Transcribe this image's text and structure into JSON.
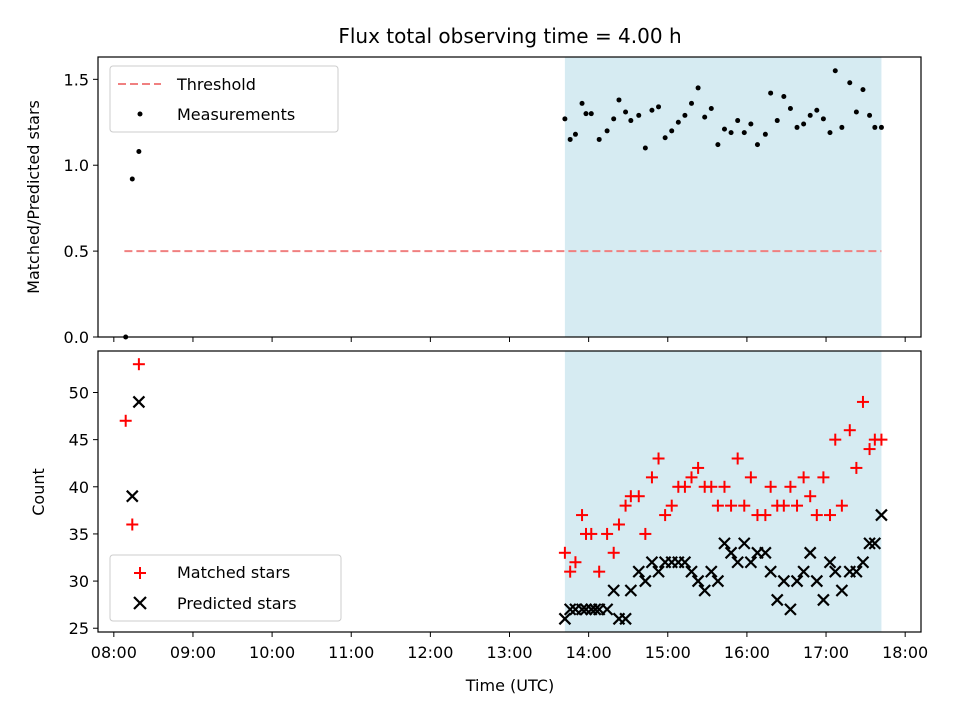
{
  "title": "Flux total observing time = 4.00 h",
  "xlabel": "Time (UTC)",
  "x_ticks": [
    "08:00",
    "09:00",
    "10:00",
    "11:00",
    "12:00",
    "13:00",
    "14:00",
    "15:00",
    "16:00",
    "17:00",
    "18:00"
  ],
  "colors": {
    "threshold": "#f08080",
    "span": "#add8e6",
    "matched": "#ff0000",
    "predicted": "#000000",
    "measurement": "#000000"
  },
  "chart_data": [
    {
      "type": "scatter",
      "ylabel": "Matched/Predicted stars",
      "xlim": [
        "07:48",
        "18:12"
      ],
      "ylim": [
        0,
        1.63
      ],
      "y_ticks": [
        "0.0",
        "0.5",
        "1.0",
        "1.5"
      ],
      "y_tick_values": [
        0,
        0.5,
        1.0,
        1.5
      ],
      "legend_position": "upper-left",
      "shaded_span": {
        "start": "13:42",
        "end": "17:42"
      },
      "threshold": {
        "name": "Threshold",
        "y": 0.5,
        "x_start": "08:08",
        "x_end": "17:42"
      },
      "series": [
        {
          "name": "Measurements",
          "x": [
            "08:09",
            "08:14",
            "08:19",
            "13:42",
            "13:46",
            "13:50",
            "13:55",
            "13:58",
            "14:02",
            "14:08",
            "14:14",
            "14:19",
            "14:23",
            "14:28",
            "14:32",
            "14:38",
            "14:43",
            "14:48",
            "14:53",
            "14:58",
            "15:03",
            "15:08",
            "15:13",
            "15:18",
            "15:23",
            "15:28",
            "15:33",
            "15:38",
            "15:43",
            "15:48",
            "15:53",
            "15:58",
            "16:03",
            "16:08",
            "16:14",
            "16:18",
            "16:23",
            "16:28",
            "16:33",
            "16:38",
            "16:43",
            "16:48",
            "16:53",
            "16:58",
            "17:03",
            "17:07",
            "17:12",
            "17:18",
            "17:23",
            "17:28",
            "17:33",
            "17:37",
            "17:42"
          ],
          "y": [
            0.0,
            0.92,
            1.08,
            1.27,
            1.15,
            1.18,
            1.36,
            1.3,
            1.3,
            1.15,
            1.2,
            1.27,
            1.38,
            1.31,
            1.26,
            1.29,
            1.1,
            1.32,
            1.34,
            1.16,
            1.2,
            1.25,
            1.29,
            1.36,
            1.45,
            1.28,
            1.33,
            1.12,
            1.21,
            1.19,
            1.26,
            1.19,
            1.24,
            1.12,
            1.18,
            1.42,
            1.26,
            1.4,
            1.33,
            1.22,
            1.24,
            1.29,
            1.32,
            1.27,
            1.19,
            1.55,
            1.22,
            1.48,
            1.31,
            1.44,
            1.29,
            1.22,
            1.22
          ]
        }
      ]
    },
    {
      "type": "scatter",
      "ylabel": "Count",
      "xlim": [
        "07:48",
        "18:12"
      ],
      "ylim": [
        24.6,
        54.4
      ],
      "y_ticks": [
        "25",
        "30",
        "35",
        "40",
        "45",
        "50"
      ],
      "y_tick_values": [
        25,
        30,
        35,
        40,
        45,
        50
      ],
      "legend_position": "lower-left",
      "shaded_span": {
        "start": "13:42",
        "end": "17:42"
      },
      "series": [
        {
          "name": "Matched stars",
          "marker": "+",
          "x": [
            "08:09",
            "08:14",
            "08:19",
            "13:42",
            "13:46",
            "13:50",
            "13:55",
            "13:58",
            "14:02",
            "14:08",
            "14:14",
            "14:19",
            "14:23",
            "14:28",
            "14:32",
            "14:38",
            "14:43",
            "14:48",
            "14:53",
            "14:58",
            "15:03",
            "15:08",
            "15:13",
            "15:18",
            "15:23",
            "15:28",
            "15:33",
            "15:38",
            "15:43",
            "15:48",
            "15:53",
            "15:58",
            "16:03",
            "16:08",
            "16:14",
            "16:18",
            "16:23",
            "16:28",
            "16:33",
            "16:38",
            "16:43",
            "16:48",
            "16:53",
            "16:58",
            "17:03",
            "17:07",
            "17:12",
            "17:18",
            "17:23",
            "17:28",
            "17:33",
            "17:37",
            "17:42"
          ],
          "y": [
            47,
            36,
            53,
            33,
            31,
            32,
            37,
            35,
            35,
            31,
            35,
            33,
            36,
            38,
            39,
            39,
            35,
            41,
            43,
            37,
            38,
            40,
            40,
            41,
            42,
            40,
            40,
            38,
            40,
            38,
            43,
            38,
            41,
            37,
            37,
            40,
            38,
            38,
            40,
            38,
            41,
            39,
            37,
            41,
            37,
            45,
            38,
            46,
            42,
            49,
            44,
            45,
            45
          ]
        },
        {
          "name": "Predicted stars",
          "marker": "x",
          "x": [
            "08:14",
            "08:19",
            "13:42",
            "13:46",
            "13:50",
            "13:55",
            "13:58",
            "14:02",
            "14:05",
            "14:08",
            "14:14",
            "14:19",
            "14:23",
            "14:28",
            "14:32",
            "14:38",
            "14:43",
            "14:48",
            "14:53",
            "14:58",
            "15:03",
            "15:08",
            "15:13",
            "15:18",
            "15:23",
            "15:28",
            "15:33",
            "15:38",
            "15:43",
            "15:48",
            "15:53",
            "15:58",
            "16:03",
            "16:08",
            "16:14",
            "16:18",
            "16:23",
            "16:28",
            "16:33",
            "16:38",
            "16:43",
            "16:48",
            "16:53",
            "16:58",
            "17:03",
            "17:07",
            "17:12",
            "17:18",
            "17:23",
            "17:28",
            "17:33",
            "17:37",
            "17:42"
          ],
          "y": [
            39,
            49,
            26,
            27,
            27,
            27,
            27,
            27,
            27,
            27,
            27,
            29,
            26,
            26,
            29,
            31,
            30,
            32,
            31,
            32,
            32,
            32,
            32,
            31,
            30,
            29,
            31,
            30,
            34,
            33,
            32,
            34,
            32,
            33,
            33,
            31,
            28,
            30,
            27,
            30,
            31,
            33,
            30,
            28,
            32,
            31,
            29,
            31,
            31,
            32,
            34,
            34,
            37
          ]
        }
      ]
    }
  ]
}
